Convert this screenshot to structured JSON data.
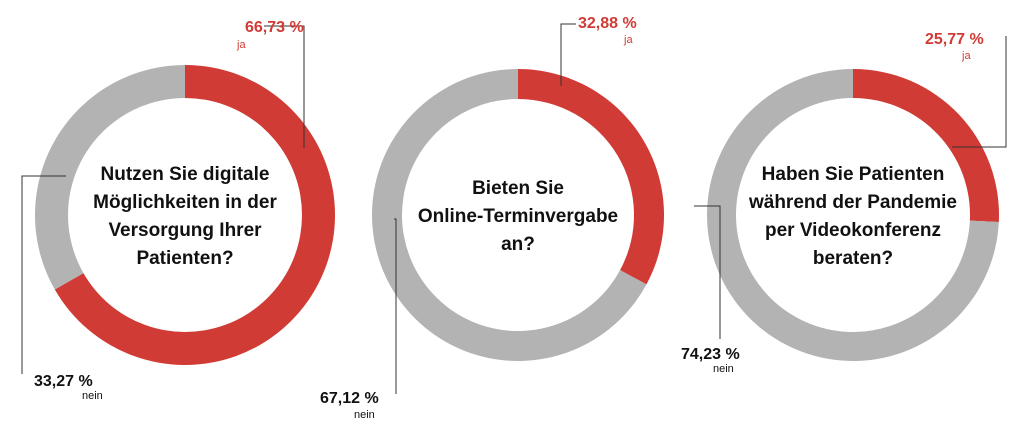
{
  "colors": {
    "yes": "#d13b35",
    "no": "#b3b3b3"
  },
  "chart_data": [
    {
      "type": "pie",
      "donut": true,
      "question_lines": [
        "Nutzen Sie digitale",
        "Möglichkeiten in der",
        "Versorgung Ihrer",
        "Patienten?"
      ],
      "slices": [
        {
          "label": "ja",
          "value": 66.73,
          "display": "66,73 %"
        },
        {
          "label": "nein",
          "value": 33.27,
          "display": "33,27 %"
        }
      ]
    },
    {
      "type": "pie",
      "donut": true,
      "question_lines": [
        "Bieten Sie",
        "Online-Terminvergabe",
        "an?"
      ],
      "slices": [
        {
          "label": "ja",
          "value": 32.88,
          "display": "32,88 %"
        },
        {
          "label": "nein",
          "value": 67.12,
          "display": "67,12 %"
        }
      ]
    },
    {
      "type": "pie",
      "donut": true,
      "question_lines": [
        "Haben Sie Patienten",
        "während der Pandemie",
        "per Videokonferenz",
        "beraten?"
      ],
      "slices": [
        {
          "label": "ja",
          "value": 25.77,
          "display": "25,77 %"
        },
        {
          "label": "nein",
          "value": 74.23,
          "display": "74,23 %"
        }
      ]
    }
  ]
}
